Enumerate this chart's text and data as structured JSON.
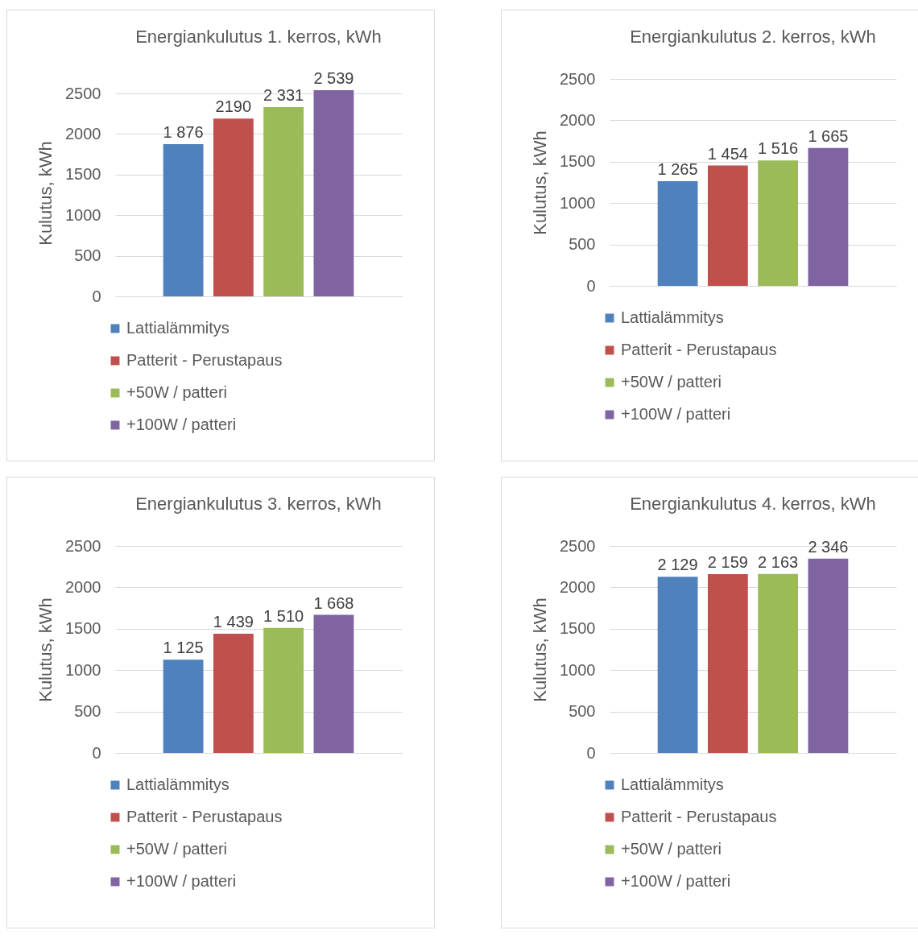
{
  "chart_data": [
    {
      "type": "bar",
      "title": "Energiankulutus 1. kerros, kWh",
      "ylabel": "Kulutus, kWh",
      "categories": [
        null
      ],
      "series": [
        {
          "name": "Lattialämmitys",
          "color": "#4f81bd",
          "values": [
            1876
          ],
          "value_labels": [
            "1 876"
          ]
        },
        {
          "name": "Patterit - Perustapaus",
          "color": "#c0504d",
          "values": [
            2190
          ],
          "value_labels": [
            "2190"
          ]
        },
        {
          "name": "+50W / patteri",
          "color": "#9bbb59",
          "values": [
            2331
          ],
          "value_labels": [
            "2 331"
          ]
        },
        {
          "name": "+100W / patteri",
          "color": "#8064a2",
          "values": [
            2539
          ],
          "value_labels": [
            "2 539"
          ]
        }
      ],
      "ylim": [
        0,
        2550
      ],
      "yticks": [
        0,
        500,
        1000,
        1500,
        2000,
        2500
      ],
      "grid": "y",
      "legend": "bottom"
    },
    {
      "type": "bar",
      "title": "Energiankulutus 2. kerros, kWh",
      "ylabel": "Kulutus, kWh",
      "categories": [
        null
      ],
      "series": [
        {
          "name": "Lattialämmitys",
          "color": "#4f81bd",
          "values": [
            1265
          ],
          "value_labels": [
            "1 265"
          ]
        },
        {
          "name": "Patterit - Perustapaus",
          "color": "#c0504d",
          "values": [
            1454
          ],
          "value_labels": [
            "1 454"
          ]
        },
        {
          "name": "+50W / patteri",
          "color": "#9bbb59",
          "values": [
            1516
          ],
          "value_labels": [
            "1 516"
          ]
        },
        {
          "name": "+100W / patteri",
          "color": "#8064a2",
          "values": [
            1665
          ],
          "value_labels": [
            "1 665"
          ]
        }
      ],
      "ylim": [
        0,
        2500
      ],
      "yticks": [
        0,
        500,
        1000,
        1500,
        2000,
        2500
      ],
      "grid": "y",
      "legend": "bottom"
    },
    {
      "type": "bar",
      "title": "Energiankulutus 3. kerros, kWh",
      "ylabel": "Kulutus, kWh",
      "categories": [
        null
      ],
      "series": [
        {
          "name": "Lattialämmitys",
          "color": "#4f81bd",
          "values": [
            1125
          ],
          "value_labels": [
            "1 125"
          ]
        },
        {
          "name": "Patterit - Perustapaus",
          "color": "#c0504d",
          "values": [
            1439
          ],
          "value_labels": [
            "1 439"
          ]
        },
        {
          "name": "+50W / patteri",
          "color": "#9bbb59",
          "values": [
            1510
          ],
          "value_labels": [
            "1 510"
          ]
        },
        {
          "name": "+100W / patteri",
          "color": "#8064a2",
          "values": [
            1668
          ],
          "value_labels": [
            "1 668"
          ]
        }
      ],
      "ylim": [
        0,
        2500
      ],
      "yticks": [
        0,
        500,
        1000,
        1500,
        2000,
        2500
      ],
      "grid": "y",
      "legend": "bottom"
    },
    {
      "type": "bar",
      "title": "Energiankulutus 4. kerros, kWh",
      "ylabel": "Kulutus, kWh",
      "categories": [
        null
      ],
      "series": [
        {
          "name": "Lattialämmitys",
          "color": "#4f81bd",
          "values": [
            2129
          ],
          "value_labels": [
            "2 129"
          ]
        },
        {
          "name": "Patterit - Perustapaus",
          "color": "#c0504d",
          "values": [
            2159
          ],
          "value_labels": [
            "2 159"
          ]
        },
        {
          "name": "+50W / patteri",
          "color": "#9bbb59",
          "values": [
            2163
          ],
          "value_labels": [
            "2 163"
          ]
        },
        {
          "name": "+100W / patteri",
          "color": "#8064a2",
          "values": [
            2346
          ],
          "value_labels": [
            "2 346"
          ]
        }
      ],
      "ylim": [
        0,
        2500
      ],
      "yticks": [
        0,
        500,
        1000,
        1500,
        2000,
        2500
      ],
      "grid": "y",
      "legend": "bottom"
    }
  ]
}
